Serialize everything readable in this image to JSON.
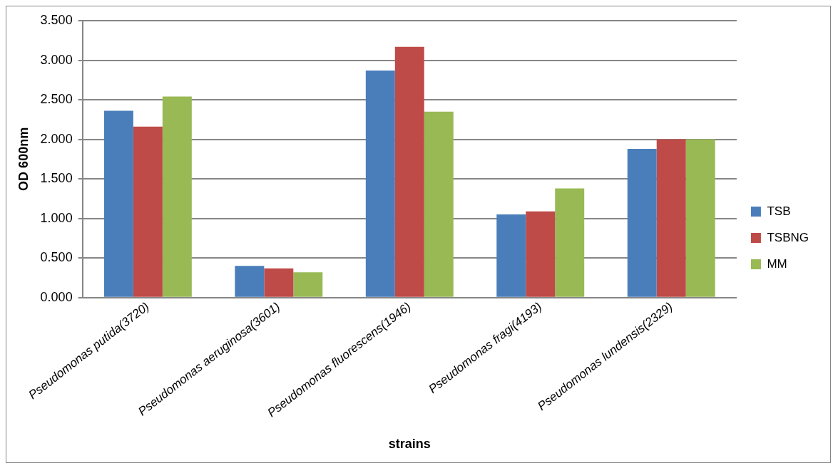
{
  "chart_data": {
    "type": "bar",
    "xlabel": "strains",
    "ylabel": "OD 600nm",
    "categories": [
      "Pseudomonas putida(3720)",
      "Pseudomonas aeruginosa(3601)",
      "Pseudomonas fluorescens(1946)",
      "Pseudomonas fragi(4193)",
      "Pseudomonas lundensis(2329)"
    ],
    "series": [
      {
        "name": "TSB",
        "color": "#4a7ebb",
        "values": [
          2.36,
          0.4,
          2.87,
          1.05,
          1.88
        ]
      },
      {
        "name": "TSBNG",
        "color": "#be4b48",
        "values": [
          2.16,
          0.37,
          3.17,
          1.09,
          2.0
        ]
      },
      {
        "name": "MM",
        "color": "#98b954",
        "values": [
          2.54,
          0.32,
          2.35,
          1.38,
          2.0
        ]
      }
    ],
    "ylim": [
      0,
      3.5
    ],
    "yticks": [
      {
        "value": 0,
        "label": "0.000"
      },
      {
        "value": 0.5,
        "label": "0.500"
      },
      {
        "value": 1,
        "label": "1.000"
      },
      {
        "value": 1.5,
        "label": "1.500"
      },
      {
        "value": 2,
        "label": "2.000"
      },
      {
        "value": 2.5,
        "label": "2.500"
      },
      {
        "value": 3,
        "label": "3.000"
      },
      {
        "value": 3.5,
        "label": "3.500"
      }
    ],
    "grid": "y",
    "legend": "right"
  }
}
